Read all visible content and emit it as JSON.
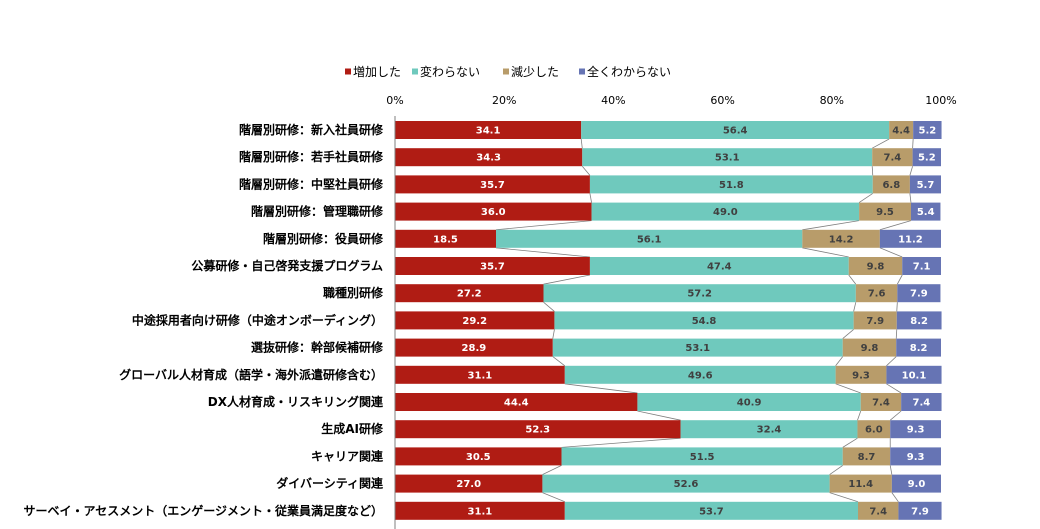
{
  "chart_data": {
    "type": "bar",
    "orientation": "horizontal",
    "stacked": true,
    "percent_axis": true,
    "xlim": [
      0,
      100
    ],
    "x_ticks": [
      "0%",
      "20%",
      "40%",
      "60%",
      "80%",
      "100%"
    ],
    "legend_position": "top-left",
    "grid": false,
    "categories": [
      "階層別研修：新入社員研修",
      "階層別研修：若手社員研修",
      "階層別研修：中堅社員研修",
      "階層別研修：管理職研修",
      "階層別研修：役員研修",
      "公募研修・自己啓発支援プログラム",
      "職種別研修",
      "中途採用者向け研修（中途オンボーディング）",
      "選抜研修：幹部候補研修",
      "グローバル人材育成（語学・海外派遣研修含む）",
      "DX人材育成・リスキリング関連",
      "生成AI研修",
      "キャリア関連",
      "ダイバーシティ関連",
      "サーベイ・アセスメント（エンゲージメント・従業員満足度など）"
    ],
    "series": [
      {
        "name": "増加した",
        "color": "#b01c14",
        "label_color": "#ffffff",
        "values": [
          34.1,
          34.3,
          35.7,
          36.0,
          18.5,
          35.7,
          27.2,
          29.2,
          28.9,
          31.1,
          44.4,
          52.3,
          30.5,
          27.0,
          31.1
        ]
      },
      {
        "name": "変わらない",
        "color": "#6fc9bd",
        "label_color": "#404040",
        "values": [
          56.4,
          53.1,
          51.8,
          49.0,
          56.1,
          47.4,
          57.2,
          54.8,
          53.1,
          49.6,
          40.9,
          32.4,
          51.5,
          52.6,
          53.7
        ]
      },
      {
        "name": "減少した",
        "color": "#b89c6a",
        "label_color": "#404040",
        "values": [
          4.4,
          7.4,
          6.8,
          9.5,
          14.2,
          9.8,
          7.6,
          7.9,
          9.8,
          9.3,
          7.4,
          6.0,
          8.7,
          11.4,
          7.4
        ]
      },
      {
        "name": "全くわからない",
        "color": "#6674b4",
        "label_color": "#ffffff",
        "values": [
          5.2,
          5.2,
          5.7,
          5.4,
          11.2,
          7.1,
          7.9,
          8.2,
          8.2,
          10.1,
          7.4,
          9.3,
          9.3,
          9.0,
          7.9
        ]
      }
    ]
  }
}
